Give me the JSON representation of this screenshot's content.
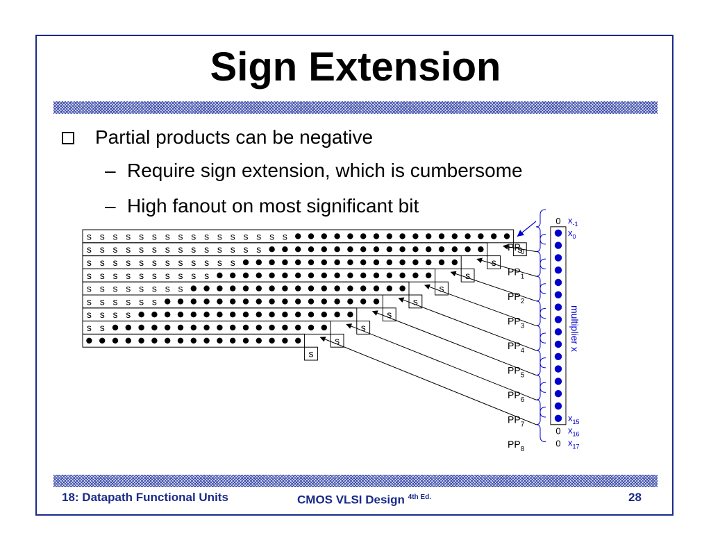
{
  "slide": {
    "title": "Sign Extension",
    "bullet_main": "Partial products can be negative",
    "sub_bullets": [
      "Require sign extension, which is cumbersome",
      "High fanout on most significant bit"
    ],
    "dash": "–"
  },
  "footer": {
    "left": "18: Datapath Functional Units",
    "center": "CMOS VLSI Design",
    "center_sup": "4th Ed.",
    "page": "28"
  },
  "diagram": {
    "sign_char": "s",
    "rows": [
      {
        "label_main": "PP",
        "label_sub": "0",
        "s_prefix": 16,
        "dots": 17
      },
      {
        "label_main": "PP",
        "label_sub": "1",
        "s_prefix": 14,
        "dots": 17
      },
      {
        "label_main": "PP",
        "label_sub": "2",
        "s_prefix": 12,
        "dots": 17
      },
      {
        "label_main": "PP",
        "label_sub": "3",
        "s_prefix": 10,
        "dots": 17
      },
      {
        "label_main": "PP",
        "label_sub": "4",
        "s_prefix": 8,
        "dots": 17
      },
      {
        "label_main": "PP",
        "label_sub": "5",
        "s_prefix": 6,
        "dots": 17
      },
      {
        "label_main": "PP",
        "label_sub": "6",
        "s_prefix": 4,
        "dots": 17
      },
      {
        "label_main": "PP",
        "label_sub": "7",
        "s_prefix": 2,
        "dots": 17
      },
      {
        "label_main": "PP",
        "label_sub": "8",
        "s_prefix": 0,
        "dots": 17
      }
    ],
    "multiplier_label": "multiplier x",
    "multiplier_bits": [
      {
        "value": "0",
        "label_main": "x",
        "label_sub": "-1"
      },
      {
        "value": "dot",
        "label_main": "x",
        "label_sub": "0"
      },
      {
        "value": "dot"
      },
      {
        "value": "dot"
      },
      {
        "value": "dot"
      },
      {
        "value": "dot"
      },
      {
        "value": "dot"
      },
      {
        "value": "dot"
      },
      {
        "value": "dot"
      },
      {
        "value": "dot"
      },
      {
        "value": "dot"
      },
      {
        "value": "dot"
      },
      {
        "value": "dot"
      },
      {
        "value": "dot"
      },
      {
        "value": "dot"
      },
      {
        "value": "dot"
      },
      {
        "value": "dot",
        "label_main": "x",
        "label_sub": "15"
      },
      {
        "value": "0",
        "label_main": "x",
        "label_sub": "16"
      },
      {
        "value": "0",
        "label_main": "x",
        "label_sub": "17"
      }
    ],
    "colors": {
      "accent": "#0000cc",
      "frame": "#1a2a8a",
      "ink": "#000000"
    }
  }
}
